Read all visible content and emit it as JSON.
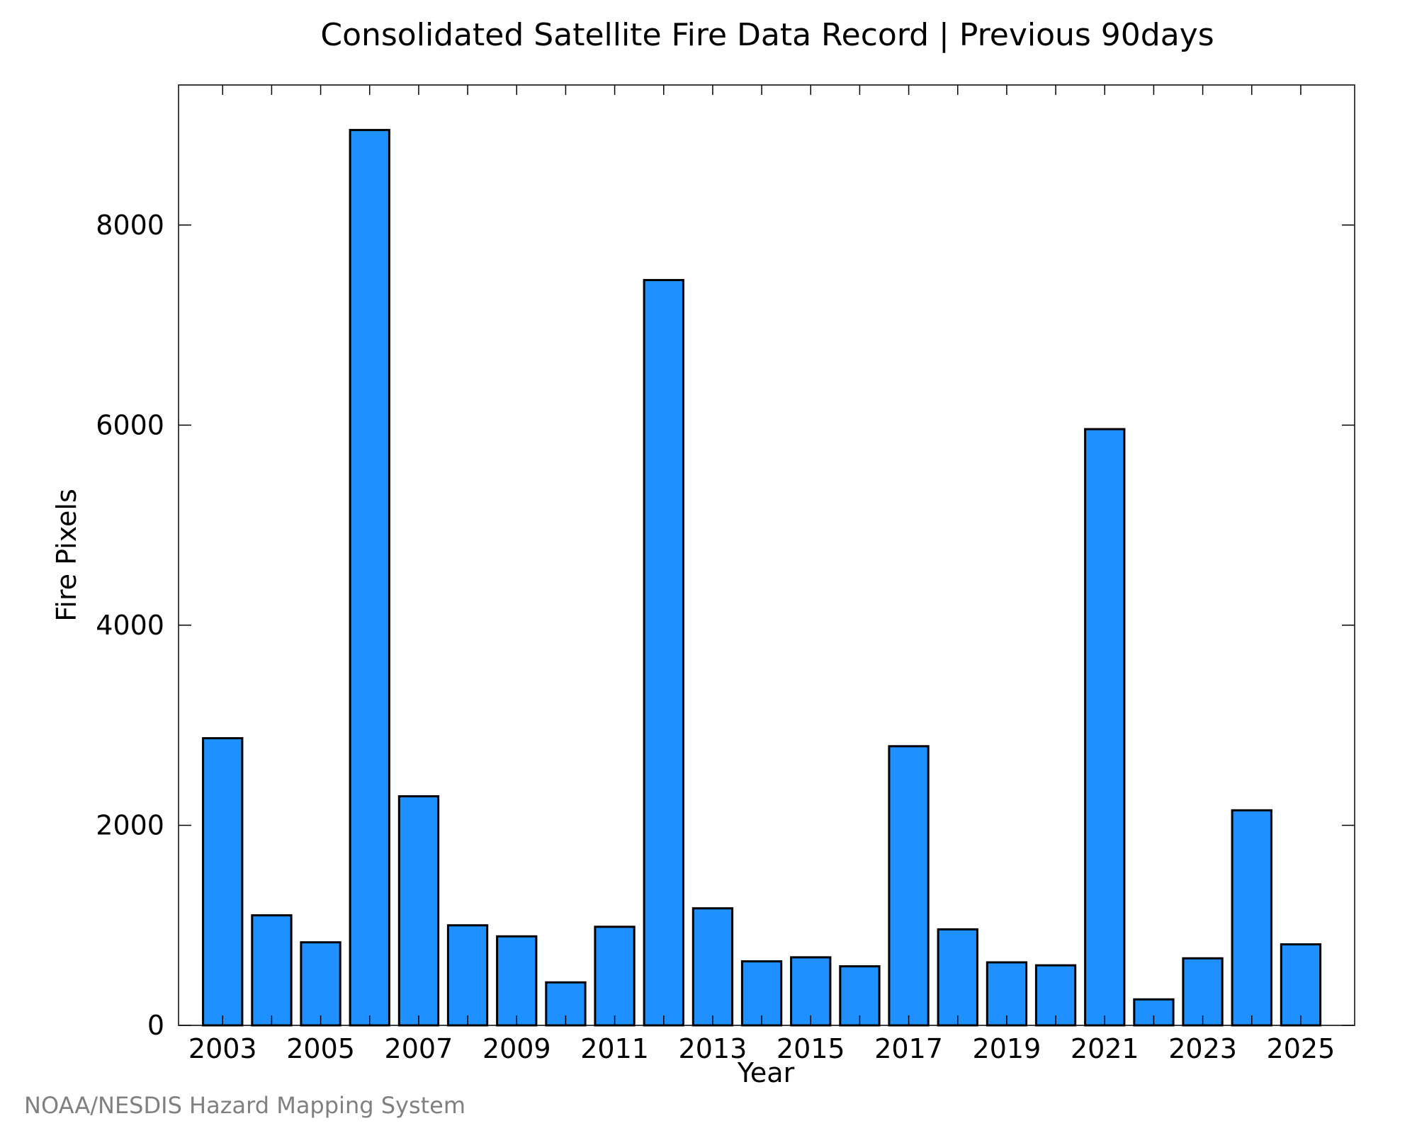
{
  "chart_data": {
    "type": "bar",
    "title": "Consolidated Satellite Fire Data Record | Previous 90days",
    "xlabel": "Year",
    "ylabel": "Fire Pixels",
    "categories": [
      "2003",
      "2004",
      "2005",
      "2006",
      "2007",
      "2008",
      "2009",
      "2010",
      "2011",
      "2012",
      "2013",
      "2014",
      "2015",
      "2016",
      "2017",
      "2018",
      "2019",
      "2020",
      "2021",
      "2022",
      "2023",
      "2024",
      "2025"
    ],
    "values": [
      2870,
      1100,
      830,
      8950,
      2290,
      1000,
      890,
      430,
      985,
      7450,
      1170,
      640,
      680,
      590,
      2790,
      960,
      630,
      600,
      5960,
      260,
      670,
      2150,
      810
    ],
    "x_tick_labels": [
      "2003",
      "2005",
      "2007",
      "2009",
      "2011",
      "2013",
      "2015",
      "2017",
      "2019",
      "2021",
      "2023",
      "2025"
    ],
    "y_ticks": [
      0,
      2000,
      4000,
      6000,
      8000
    ],
    "ylim": [
      0,
      9400
    ],
    "grid": false,
    "bar_color": "#1E90FF",
    "edge_color": "#000000"
  },
  "footer": {
    "credit": "NOAA/NESDIS Hazard Mapping System"
  }
}
